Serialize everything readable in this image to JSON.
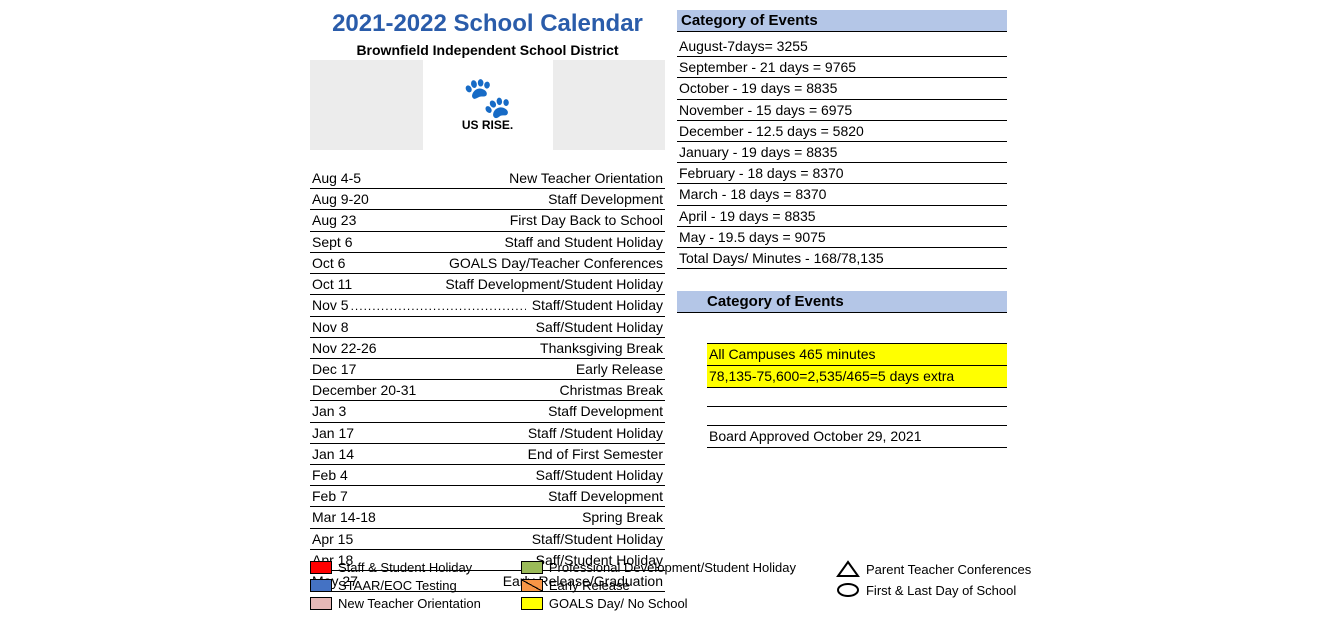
{
  "header": {
    "title": "2021-2022 School Calendar",
    "district": "Brownfield Independent School District",
    "logo_text": "US RISE."
  },
  "events": [
    {
      "date": "Aug 4-5",
      "desc": "New Teacher Orientation",
      "dotted": false
    },
    {
      "date": "Aug 9-20",
      "desc": "Staff Development",
      "dotted": false
    },
    {
      "date": "Aug 23",
      "desc": "First Day Back to School",
      "dotted": false
    },
    {
      "date": "Sept 6",
      "desc": "Staff and Student Holiday",
      "dotted": false
    },
    {
      "date": "Oct 6",
      "desc": "GOALS Day/Teacher Conferences",
      "dotted": false
    },
    {
      "date": "Oct 11",
      "desc": "Staff Development/Student Holiday",
      "dotted": false
    },
    {
      "date": "Nov 5",
      "desc": "Staff/Student Holiday",
      "dotted": true
    },
    {
      "date": "Nov 8",
      "desc": "Saff/Student Holiday",
      "dotted": false
    },
    {
      "date": "Nov 22-26",
      "desc": "Thanksgiving Break",
      "dotted": false
    },
    {
      "date": "Dec 17",
      "desc": "Early Release",
      "dotted": false
    },
    {
      "date": "December 20-31",
      "desc": "Christmas Break",
      "dotted": false
    },
    {
      "date": "Jan 3",
      "desc": "Staff Development",
      "dotted": false
    },
    {
      "date": "Jan 17",
      "desc": "Staff /Student Holiday",
      "dotted": false
    },
    {
      "date": "Jan 14",
      "desc": "End of First Semester",
      "dotted": false
    },
    {
      "date": "Feb 4",
      "desc": "Saff/Student Holiday",
      "dotted": false
    },
    {
      "date": "Feb 7",
      "desc": "Staff Development",
      "dotted": false
    },
    {
      "date": "Mar 14-18",
      "desc": "Spring Break",
      "dotted": false
    },
    {
      "date": "Apr 15",
      "desc": "Staff/Student Holiday",
      "dotted": false
    },
    {
      "date": "Apr 18",
      "desc": "Saff/Student Holiday",
      "dotted": false
    },
    {
      "date": "May 27",
      "desc": "Early Release/Graduation",
      "dotted": false
    }
  ],
  "right": {
    "cat_header_1": "Category of Events",
    "months": [
      "August-7days= 3255",
      "September - 21 days = 9765",
      "October - 19 days = 8835",
      "November - 15 days = 6975",
      "December - 12.5 days = 5820",
      "January - 19 days = 8835",
      "February - 18 days = 8370",
      "March - 18 days = 8370",
      "April - 19 days = 8835",
      "May - 19.5 days = 9075",
      "Total Days/ Minutes - 168/78,135"
    ],
    "cat_header_2": "Category of Events",
    "highlight": [
      {
        "text": "",
        "yellow": false
      },
      {
        "text": "All Campuses 465 minutes",
        "yellow": true
      },
      {
        "text": "78,135-75,600=2,535/465=5 days extra",
        "yellow": true
      },
      {
        "text": "",
        "yellow": false
      },
      {
        "text": "",
        "yellow": false
      },
      {
        "text": "Board Approved October 29, 2021",
        "yellow": false
      }
    ]
  },
  "legend": {
    "col1": [
      {
        "color": "#ff0000",
        "label": "Staff & Student Holiday"
      },
      {
        "color": "#4472c4",
        "label": "STAAR/EOC Testing"
      },
      {
        "color": "#e6b8b7",
        "label": "New Teacher Orientation"
      }
    ],
    "col2": [
      {
        "color": "#9bbb59",
        "label": "Professional Development/Student Holiday"
      },
      {
        "color": "#f79646",
        "label": "Early Release",
        "diag": true
      },
      {
        "color": "#ffff00",
        "label": "GOALS Day/ No School"
      }
    ],
    "col3": [
      {
        "shape": "triangle",
        "label": "Parent Teacher Conferences"
      },
      {
        "shape": "ellipse",
        "label": "First & Last Day of School"
      }
    ]
  },
  "colors": {
    "title": "#2a5caa",
    "cat_bg": "#b4c6e7",
    "yellow": "#ffff00",
    "logo_bg": "#ececec"
  }
}
